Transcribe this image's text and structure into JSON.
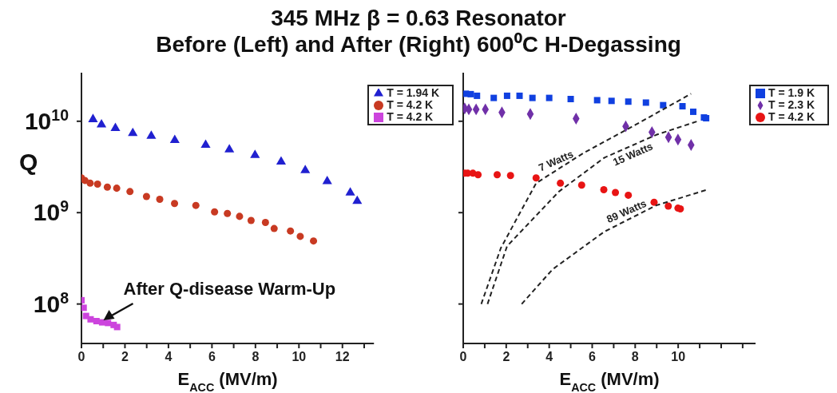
{
  "chart_data": [
    {
      "type": "scatter",
      "title": "345 MHz β = 0.63 Resonator",
      "subtitle": "Before (Left) and After (Right) 600⁰C H-Degassing",
      "xlabel": "E$_{ACC}$ (MV/m)",
      "ylabel": "Q",
      "log": "y",
      "xlim": [
        0,
        13.45
      ],
      "xticks": [
        0,
        {
          "value": 1,
          "label": null
        },
        2,
        {
          "value": 3,
          "label": null
        },
        4,
        {
          "value": 5,
          "label": null
        },
        6,
        {
          "value": 7,
          "label": null
        },
        8,
        {
          "value": 9,
          "label": null
        },
        10,
        {
          "value": 11,
          "label": null
        },
        12,
        {
          "value": 13,
          "label": null
        }
      ],
      "ylim": [
        37000000.0,
        34000000000.0
      ],
      "yticks": [
        {
          "value": 100000000.0,
          "label": "10$^{8}$"
        },
        {
          "value": 1000000000.0,
          "label": "10$^{9}$"
        },
        {
          "value": 10000000000.0,
          "label": "10$^{10}$"
        }
      ],
      "legend": "top right",
      "annotations": [
        {
          "text": "After Q-disease Warm-Up",
          "x": 0.9,
          "y": 65000000.0
        }
      ],
      "series": [
        {
          "name": "T = 1.94 K",
          "color": "#2020d0",
          "marker": "triangle",
          "x": [
            0.53,
            0.92,
            1.56,
            2.36,
            3.21,
            4.29,
            5.71,
            6.8,
            7.98,
            9.18,
            10.29,
            11.3,
            12.36,
            12.68
          ],
          "values": [
            10500000000.0,
            9200000000.0,
            8400000000.0,
            7400000000.0,
            6900000000.0,
            6200000000.0,
            5500000000.0,
            4900000000.0,
            4250000000.0,
            3600000000.0,
            2900000000.0,
            2200000000.0,
            1650000000.0,
            1340000000.0
          ]
        },
        {
          "name": "T = 4.2 K",
          "color": "#c83a22",
          "marker": "circle",
          "x": [
            0,
            0.16,
            0.4,
            0.74,
            1.19,
            1.62,
            2.23,
            2.99,
            3.6,
            4.28,
            5.26,
            6.12,
            6.71,
            7.27,
            7.8,
            8.46,
            8.86,
            9.61,
            10.06,
            10.67
          ],
          "values": [
            2400000000.0,
            2250000000.0,
            2100000000.0,
            2050000000.0,
            1900000000.0,
            1850000000.0,
            1700000000.0,
            1500000000.0,
            1400000000.0,
            1260000000.0,
            1200000000.0,
            1020000000.0,
            980000000.0,
            910000000.0,
            820000000.0,
            780000000.0,
            670000000.0,
            630000000.0,
            550000000.0,
            490000000.0
          ]
        },
        {
          "name": "T = 4.2 K",
          "color": "#cc44dd",
          "marker": "square",
          "x": [
            0,
            0.1,
            0.21,
            0.42,
            0.69,
            0.95,
            1.22,
            1.48,
            1.64
          ],
          "values": [
            110000000.0,
            91000000.0,
            74000000.0,
            68000000.0,
            65000000.0,
            63000000.0,
            62000000.0,
            59000000.0,
            56000000.0
          ]
        }
      ]
    },
    {
      "type": "scatter",
      "xlabel": "E$_{ACC}$ (MV/m)",
      "log": "y",
      "tick_labels": "x",
      "xlim": [
        0,
        13.6
      ],
      "xticks": [
        0,
        {
          "value": 1,
          "label": null
        },
        2,
        {
          "value": 3,
          "label": null
        },
        4,
        {
          "value": 5,
          "label": null
        },
        6,
        {
          "value": 7,
          "label": null
        },
        8,
        {
          "value": 9,
          "label": null
        },
        10,
        {
          "value": 11,
          "label": null
        },
        {
          "value": 12,
          "label": null
        },
        {
          "value": 13,
          "label": null
        }
      ],
      "ylim": [
        37000000.0,
        34000000000.0
      ],
      "yticks": [
        {
          "value": 100000000.0,
          "label": null
        },
        {
          "value": 1000000000.0,
          "label": null
        },
        {
          "value": 10000000000.0,
          "label": null
        }
      ],
      "legend": "top right",
      "series": [
        {
          "name": "T = 1.9 K",
          "color": "#1040e0",
          "marker": "square",
          "x": [
            0.12,
            0.35,
            0.64,
            1.42,
            2.04,
            2.62,
            3.22,
            4.0,
            5.0,
            6.23,
            6.9,
            7.68,
            8.5,
            9.3,
            10.2,
            10.7,
            11.2,
            11.3
          ],
          "values": [
            20000000000.0,
            19800000000.0,
            19000000000.0,
            18000000000.0,
            19000000000.0,
            19000000000.0,
            18000000000.0,
            18000000000.0,
            17500000000.0,
            17000000000.0,
            16700000000.0,
            16400000000.0,
            16000000000.0,
            15000000000.0,
            14600000000.0,
            12700000000.0,
            11000000000.0,
            10800000000.0
          ]
        },
        {
          "name": "T = 2.3 K",
          "color": "#7030a8",
          "marker": "diamond",
          "x": [
            0.07,
            0.26,
            0.6,
            1.03,
            1.8,
            3.12,
            5.25,
            7.56,
            8.78,
            9.55,
            9.99,
            10.6
          ],
          "values": [
            13800000000.0,
            13500000000.0,
            13500000000.0,
            13500000000.0,
            12500000000.0,
            12000000000.0,
            10700000000.0,
            8800000000.0,
            7600000000.0,
            6700000000.0,
            6300000000.0,
            5500000000.0
          ]
        },
        {
          "name": "T = 4.2 K",
          "color": "#e81414",
          "marker": "circle",
          "x": [
            0.07,
            0.21,
            0.45,
            0.69,
            1.58,
            2.2,
            3.39,
            4.52,
            5.51,
            6.54,
            7.08,
            7.68,
            8.88,
            9.54,
            9.99,
            10.1
          ],
          "values": [
            2700000000.0,
            2700000000.0,
            2700000000.0,
            2600000000.0,
            2600000000.0,
            2550000000.0,
            2400000000.0,
            2100000000.0,
            2000000000.0,
            1780000000.0,
            1660000000.0,
            1550000000.0,
            1300000000.0,
            1180000000.0,
            1120000000.0,
            1100000000.0
          ]
        },
        {
          "name": "7 Watts",
          "type": "line",
          "line_style": "dashed",
          "marker": "none",
          "color": "#222222",
          "x": [
            0.84,
            1.75,
            3.39,
            5.6,
            8.0,
            10.6
          ],
          "values": [
            100000000.0,
            410000000.0,
            2100000000.0,
            4500000000.0,
            9100000000.0,
            20000000000.0
          ]
        },
        {
          "name": "15 Watts",
          "type": "line",
          "line_style": "dashed",
          "marker": "none",
          "color": "#222222",
          "x": [
            1.13,
            2.04,
            4.45,
            6.57,
            8.98,
            10.9
          ],
          "values": [
            100000000.0,
            430000000.0,
            1700000000.0,
            4000000000.0,
            7100000000.0,
            10000000000.0
          ]
        },
        {
          "name": "89 Watts",
          "type": "line",
          "line_style": "dashed",
          "marker": "none",
          "color": "#222222",
          "x": [
            2.72,
            4.16,
            6.57,
            8.98,
            11.4
          ],
          "values": [
            100000000.0,
            240000000.0,
            620000000.0,
            1200000000.0,
            1800000000.0
          ]
        }
      ]
    }
  ]
}
